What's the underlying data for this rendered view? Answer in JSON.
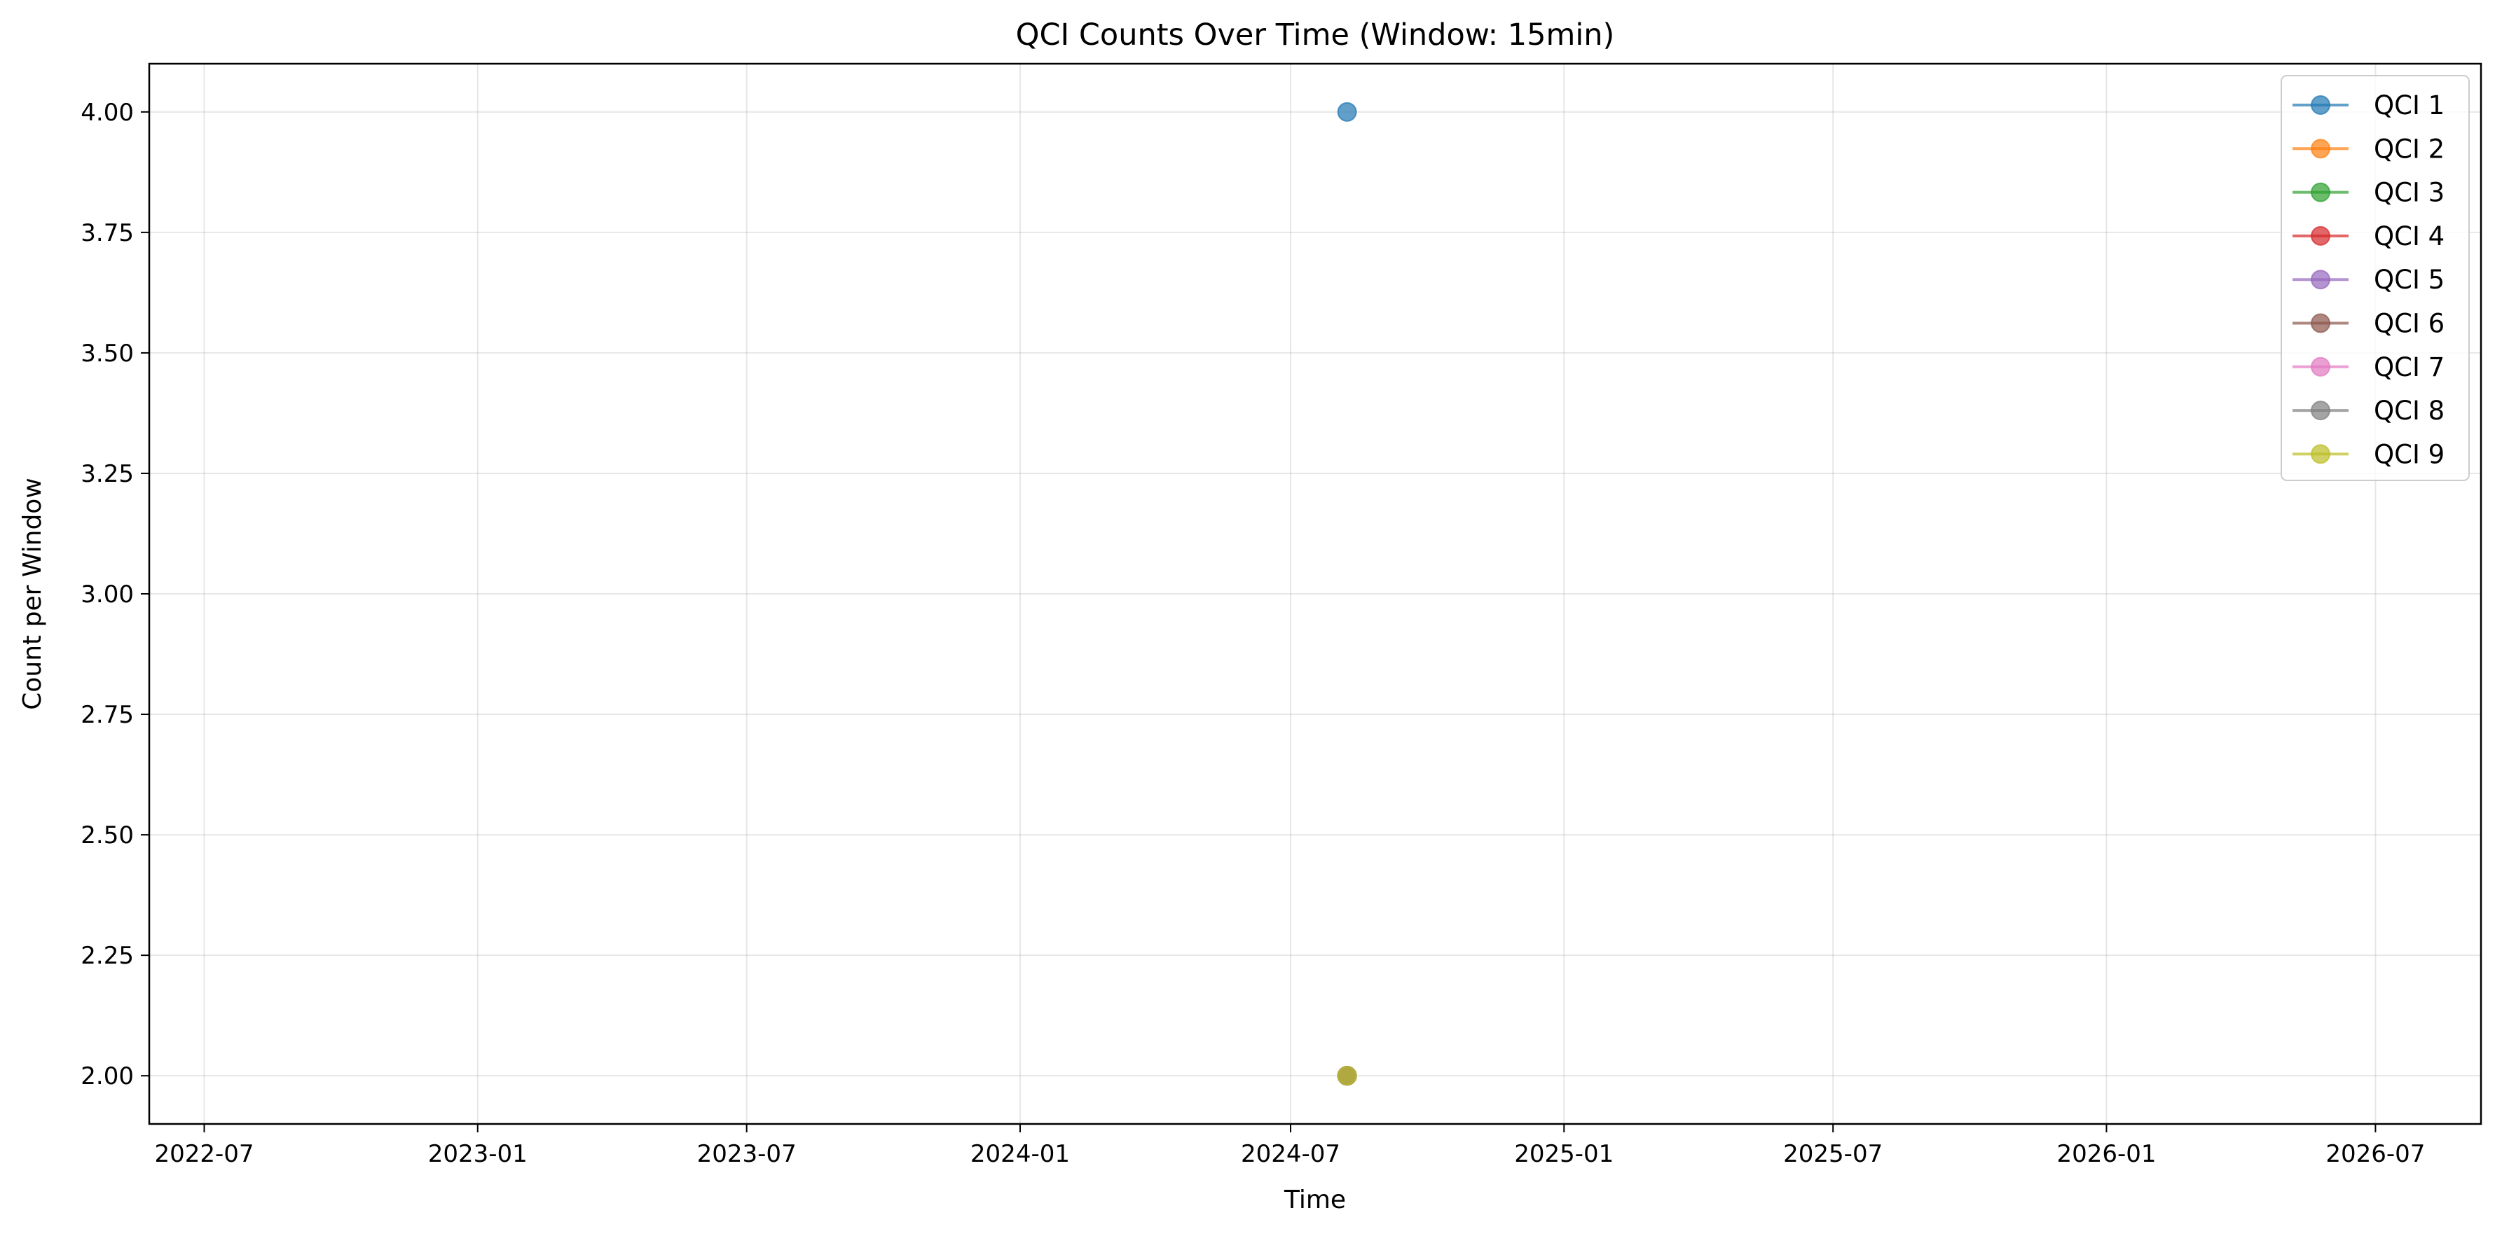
{
  "chart_data": {
    "type": "line",
    "title": "QCI Counts Over Time (Window: 15min)",
    "xlabel": "Time",
    "ylabel": "Count per Window",
    "x_ticks": [
      "2022-07",
      "2023-01",
      "2023-07",
      "2024-01",
      "2024-07",
      "2025-01",
      "2025-07",
      "2026-01",
      "2026-07"
    ],
    "y_ticks": [
      "2.00",
      "2.25",
      "2.50",
      "2.75",
      "3.00",
      "3.25",
      "3.50",
      "3.75",
      "4.00"
    ],
    "xlim": [
      "2022-05-25",
      "2026-09-10"
    ],
    "ylim": [
      1.9,
      4.1
    ],
    "grid": true,
    "legend_position": "top-right",
    "series": [
      {
        "name": "QCI 1",
        "color": "#1f77b4",
        "points": [
          {
            "x": "2024-08-08",
            "y": 4
          }
        ]
      },
      {
        "name": "QCI 2",
        "color": "#ff7f0e",
        "points": [
          {
            "x": "2024-08-08",
            "y": 2
          }
        ]
      },
      {
        "name": "QCI 3",
        "color": "#2ca02c",
        "points": [
          {
            "x": "2024-08-08",
            "y": 2
          }
        ]
      },
      {
        "name": "QCI 4",
        "color": "#d62728",
        "points": [
          {
            "x": "2024-08-08",
            "y": 2
          }
        ]
      },
      {
        "name": "QCI 5",
        "color": "#9467bd",
        "points": [
          {
            "x": "2024-08-08",
            "y": 2
          }
        ]
      },
      {
        "name": "QCI 6",
        "color": "#8c564b",
        "points": [
          {
            "x": "2024-08-08",
            "y": 2
          }
        ]
      },
      {
        "name": "QCI 7",
        "color": "#e377c2",
        "points": [
          {
            "x": "2024-08-08",
            "y": 2
          }
        ]
      },
      {
        "name": "QCI 8",
        "color": "#7f7f7f",
        "points": [
          {
            "x": "2024-08-08",
            "y": 2
          }
        ]
      },
      {
        "name": "QCI 9",
        "color": "#bcbd22",
        "points": [
          {
            "x": "2024-08-08",
            "y": 2
          }
        ]
      }
    ]
  }
}
